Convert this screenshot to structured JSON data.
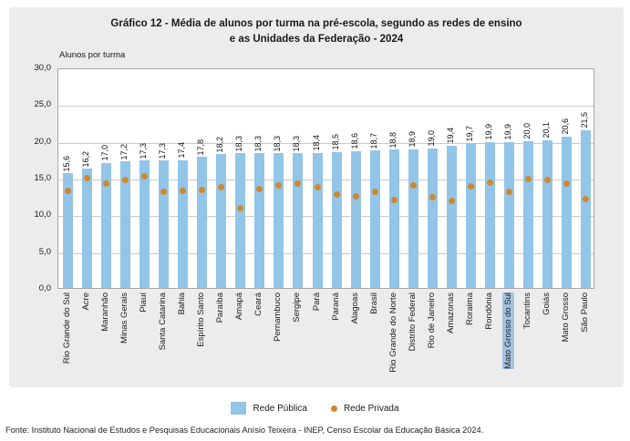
{
  "title": {
    "line1": "Gráfico 12 - Média de alunos por turma na pré-escola, segundo as redes de ensino",
    "line2": "e as Unidades da Federação - 2024"
  },
  "chart_data": {
    "type": "bar",
    "title": "Gráfico 12 - Média de alunos por turma na pré-escola, segundo as redes de ensino e as Unidades da Federação - 2024",
    "axis_label": "Alunos por turma",
    "ylim": [
      0,
      30
    ],
    "ytick_step": 5,
    "ytick_labels": [
      "30,0",
      "25,0",
      "20,0",
      "15,0",
      "10,0",
      "5,0",
      "0,0"
    ],
    "grid": true,
    "legend_position": "bottom",
    "categories": [
      "Rio Grande do Sul",
      "Acre",
      "Maranhão",
      "Minas Gerais",
      "Piauí",
      "Santa Catarina",
      "Bahia",
      "Espírito Santo",
      "Paraíba",
      "Amapá",
      "Ceará",
      "Pernambuco",
      "Sergipe",
      "Pará",
      "Paraná",
      "Alagoas",
      "Brasil",
      "Rio Grande do Norte",
      "Distrito Federal",
      "Rio de Janeiro",
      "Amazonas",
      "Roraima",
      "Rondônia",
      "Mato Grosso do Sul",
      "Tocantins",
      "Goiás",
      "Mato Grosso",
      "São Paulo"
    ],
    "highlighted_category": "Mato Grosso do Sul",
    "series": [
      {
        "name": "Rede Pública",
        "mark": "bar",
        "color": "#92c5e8",
        "values": [
          15.6,
          16.2,
          17.0,
          17.2,
          17.3,
          17.3,
          17.4,
          17.8,
          18.2,
          18.3,
          18.3,
          18.3,
          18.3,
          18.4,
          18.5,
          18.6,
          18.7,
          18.8,
          18.9,
          19.0,
          19.4,
          19.7,
          19.9,
          19.9,
          20.0,
          20.1,
          20.6,
          21.5
        ],
        "data_labels": [
          "15,6",
          "16,2",
          "17,0",
          "17,2",
          "17,3",
          "17,3",
          "17,4",
          "17,8",
          "18,2",
          "18,3",
          "18,3",
          "18,3",
          "18,3",
          "18,4",
          "18,5",
          "18,6",
          "18,7",
          "18,8",
          "18,9",
          "19,0",
          "19,4",
          "19,7",
          "19,9",
          "19,9",
          "20,0",
          "20,1",
          "20,6",
          "21,5"
        ]
      },
      {
        "name": "Rede Privada",
        "mark": "point",
        "color": "#d0882e",
        "values": [
          13.4,
          15.2,
          14.4,
          14.9,
          15.4,
          13.3,
          13.4,
          13.6,
          14.0,
          11.1,
          13.7,
          14.2,
          14.4,
          14.0,
          13.0,
          12.7,
          13.3,
          12.2,
          14.2,
          12.6,
          12.1,
          14.1,
          14.6,
          13.3,
          15.1,
          15.0,
          14.4,
          12.3
        ]
      }
    ]
  },
  "legend": {
    "items": [
      {
        "label": "Rede Pública",
        "swatch": "square",
        "color": "#92c5e8"
      },
      {
        "label": "Rede Privada",
        "swatch": "dot",
        "color": "#d0882e"
      }
    ]
  },
  "footer": {
    "source": "Fonte: Instituto Nacional de Estudos e Pesquisas Educacionais Anísio Teixeira - INEP, Censo Escolar da Educação Básica 2024."
  }
}
